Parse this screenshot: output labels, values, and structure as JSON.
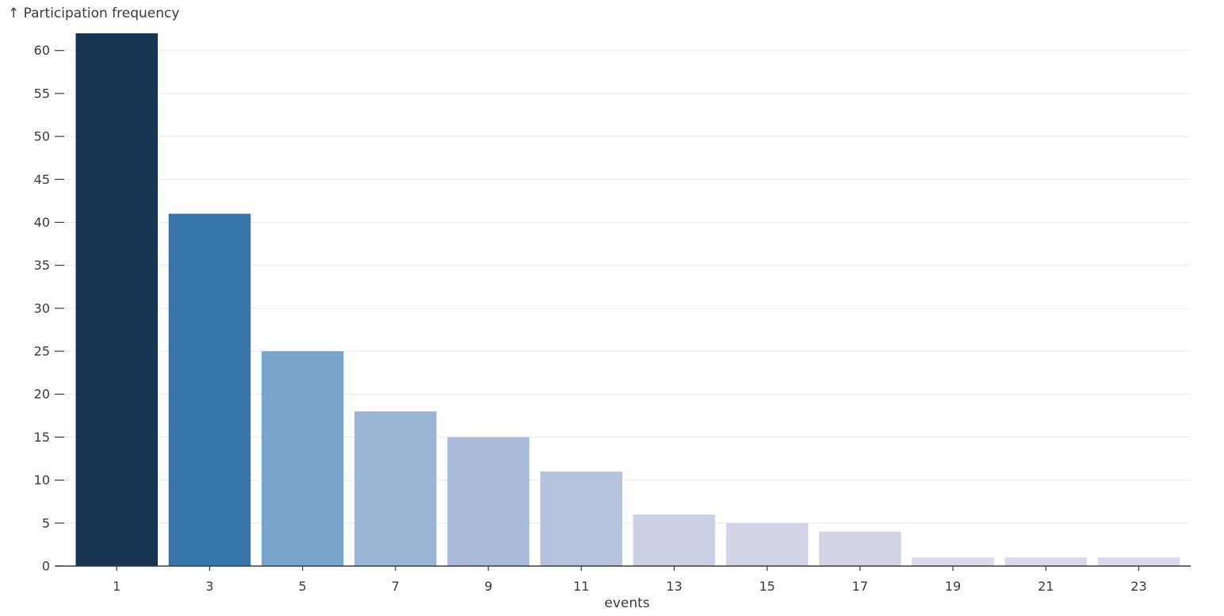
{
  "chart_data": {
    "type": "bar",
    "ylabel": "↑ Participation frequency",
    "xlabel": "events",
    "categories": [
      "1",
      "3",
      "5",
      "7",
      "9",
      "11",
      "13",
      "15",
      "17",
      "19",
      "21",
      "23"
    ],
    "values": [
      62,
      41,
      25,
      18,
      15,
      11,
      6,
      5,
      4,
      1,
      1,
      1
    ],
    "bar_colors": [
      "#173553",
      "#3674aa",
      "#79a5ca",
      "#9ab5d6",
      "#a9bbd9",
      "#b7c3de",
      "#cbd1e5",
      "#d0d4e6",
      "#d3d5e7",
      "#d8d9eb",
      "#d8d9eb",
      "#d8d9eb"
    ],
    "ylim": [
      0,
      62
    ],
    "yticks": [
      0,
      5,
      10,
      15,
      20,
      25,
      30,
      35,
      40,
      45,
      50,
      55,
      60
    ],
    "grid": true,
    "legend": "none"
  }
}
